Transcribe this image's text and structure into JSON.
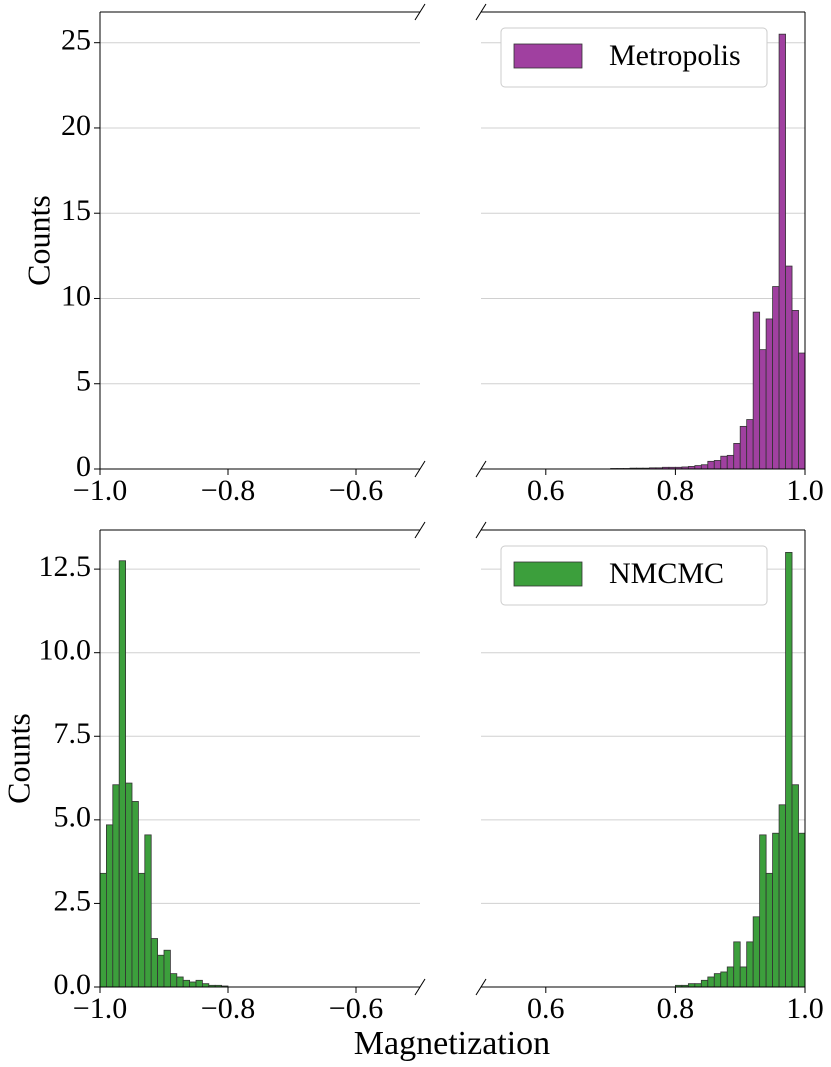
{
  "chart_data": [
    {
      "type": "histogram",
      "ylabel": "Counts",
      "xlim": [
        -1.0,
        -0.5
      ],
      "xticks": [
        {
          "value": -1.0,
          "label": "−1.0"
        },
        {
          "value": -0.8,
          "label": "−0.8"
        },
        {
          "value": -0.6,
          "label": "−0.6"
        }
      ],
      "ylim": [
        0,
        26.8
      ],
      "yticks": [
        0,
        5,
        10,
        15,
        20,
        25
      ],
      "grid": true,
      "series": []
    },
    {
      "type": "histogram",
      "xlim": [
        0.5,
        1.0
      ],
      "xticks": [
        0.6,
        0.8,
        {
          "value": 1.0,
          "label": "1.0"
        }
      ],
      "ylim": [
        0,
        26.8
      ],
      "yticks": [
        0,
        5,
        10,
        15,
        20,
        25
      ],
      "grid": true,
      "legend": "upper right",
      "series": [
        {
          "name": "Metropolis",
          "color": "#a040a0",
          "bins": [
            0.7,
            0.71,
            0.72,
            0.73,
            0.74,
            0.75,
            0.76,
            0.77,
            0.78,
            0.79,
            0.8,
            0.81,
            0.82,
            0.83,
            0.84,
            0.85,
            0.86,
            0.87,
            0.88,
            0.89,
            0.9,
            0.91,
            0.92,
            0.93,
            0.94,
            0.95,
            0.96,
            0.97,
            0.98,
            0.99,
            1.0
          ],
          "values": [
            0.03,
            0.03,
            0.03,
            0.05,
            0.05,
            0.05,
            0.07,
            0.07,
            0.1,
            0.1,
            0.1,
            0.12,
            0.15,
            0.2,
            0.25,
            0.45,
            0.5,
            0.75,
            0.8,
            1.5,
            2.5,
            2.9,
            9.2,
            7.0,
            8.8,
            10.7,
            25.5,
            11.9,
            9.3,
            6.8
          ]
        }
      ]
    },
    {
      "type": "histogram",
      "ylabel": "Counts",
      "xlabel": "Magnetization",
      "xlim": [
        -1.0,
        -0.5
      ],
      "xticks": [
        {
          "value": -1.0,
          "label": "−1.0"
        },
        {
          "value": -0.8,
          "label": "−0.8"
        },
        {
          "value": -0.6,
          "label": "−0.6"
        }
      ],
      "ylim": [
        0,
        13.67
      ],
      "yticks": [
        {
          "value": 0,
          "label": "0.0"
        },
        2.5,
        {
          "value": 5,
          "label": "5.0"
        },
        7.5,
        {
          "value": 10,
          "label": "10.0"
        },
        12.5
      ],
      "grid": true,
      "series": [
        {
          "name": "NMCMC",
          "color": "#3c9f3c",
          "bins": [
            -1.0,
            -0.99,
            -0.98,
            -0.97,
            -0.96,
            -0.95,
            -0.94,
            -0.93,
            -0.92,
            -0.91,
            -0.9,
            -0.89,
            -0.88,
            -0.87,
            -0.86,
            -0.85,
            -0.84,
            -0.83,
            -0.82,
            -0.81,
            -0.8
          ],
          "values": [
            3.4,
            4.85,
            6.05,
            12.75,
            6.1,
            5.55,
            3.4,
            4.55,
            1.45,
            0.95,
            1.1,
            0.4,
            0.3,
            0.2,
            0.15,
            0.2,
            0.1,
            0.05,
            0.05,
            0.03
          ]
        }
      ]
    },
    {
      "type": "histogram",
      "xlim": [
        0.5,
        1.0
      ],
      "xticks": [
        0.6,
        0.8,
        {
          "value": 1.0,
          "label": "1.0"
        }
      ],
      "ylim": [
        0,
        13.67
      ],
      "yticks": [
        {
          "value": 0,
          "label": "0.0"
        },
        2.5,
        {
          "value": 5,
          "label": "5.0"
        },
        7.5,
        {
          "value": 10,
          "label": "10.0"
        },
        12.5
      ],
      "grid": true,
      "legend": "upper right",
      "series": [
        {
          "name": "NMCMC",
          "color": "#3c9f3c",
          "bins": [
            0.8,
            0.81,
            0.82,
            0.83,
            0.84,
            0.85,
            0.86,
            0.87,
            0.88,
            0.89,
            0.9,
            0.91,
            0.92,
            0.93,
            0.94,
            0.95,
            0.96,
            0.97,
            0.98,
            0.99,
            1.0
          ],
          "values": [
            0.05,
            0.05,
            0.1,
            0.1,
            0.2,
            0.3,
            0.4,
            0.45,
            0.6,
            1.35,
            0.6,
            1.35,
            2.1,
            4.55,
            3.4,
            4.6,
            5.45,
            13.0,
            6.05,
            4.6
          ]
        }
      ]
    }
  ]
}
